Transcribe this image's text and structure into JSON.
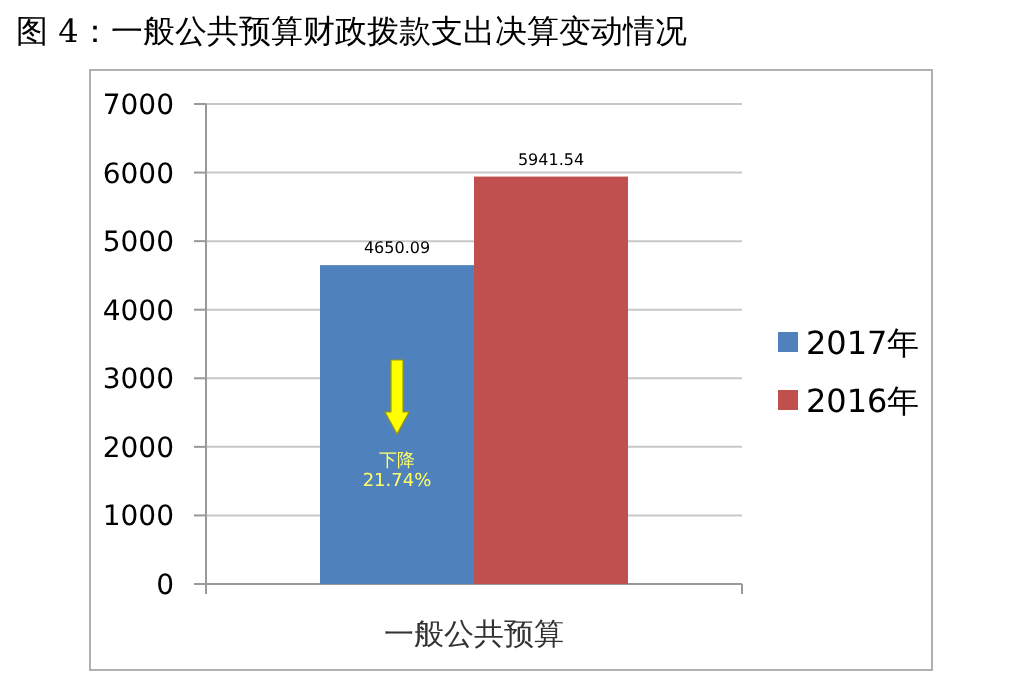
{
  "chart_data": {
    "type": "bar",
    "title": "图 4：一般公共预算财政拨款支出决算变动情况",
    "categories": [
      "一般公共预算"
    ],
    "series": [
      {
        "name": "2017年",
        "color": "#4f81bd",
        "values": [
          4650.09
        ]
      },
      {
        "name": "2016年",
        "color": "#c0504d",
        "values": [
          5941.54
        ]
      }
    ],
    "ylim": [
      0,
      7000
    ],
    "yticks": [
      0,
      1000,
      2000,
      3000,
      4000,
      5000,
      6000,
      7000
    ],
    "grid": "y",
    "legend": "right",
    "data_labels": true,
    "annotations": [
      "下降",
      "21.74%"
    ]
  }
}
